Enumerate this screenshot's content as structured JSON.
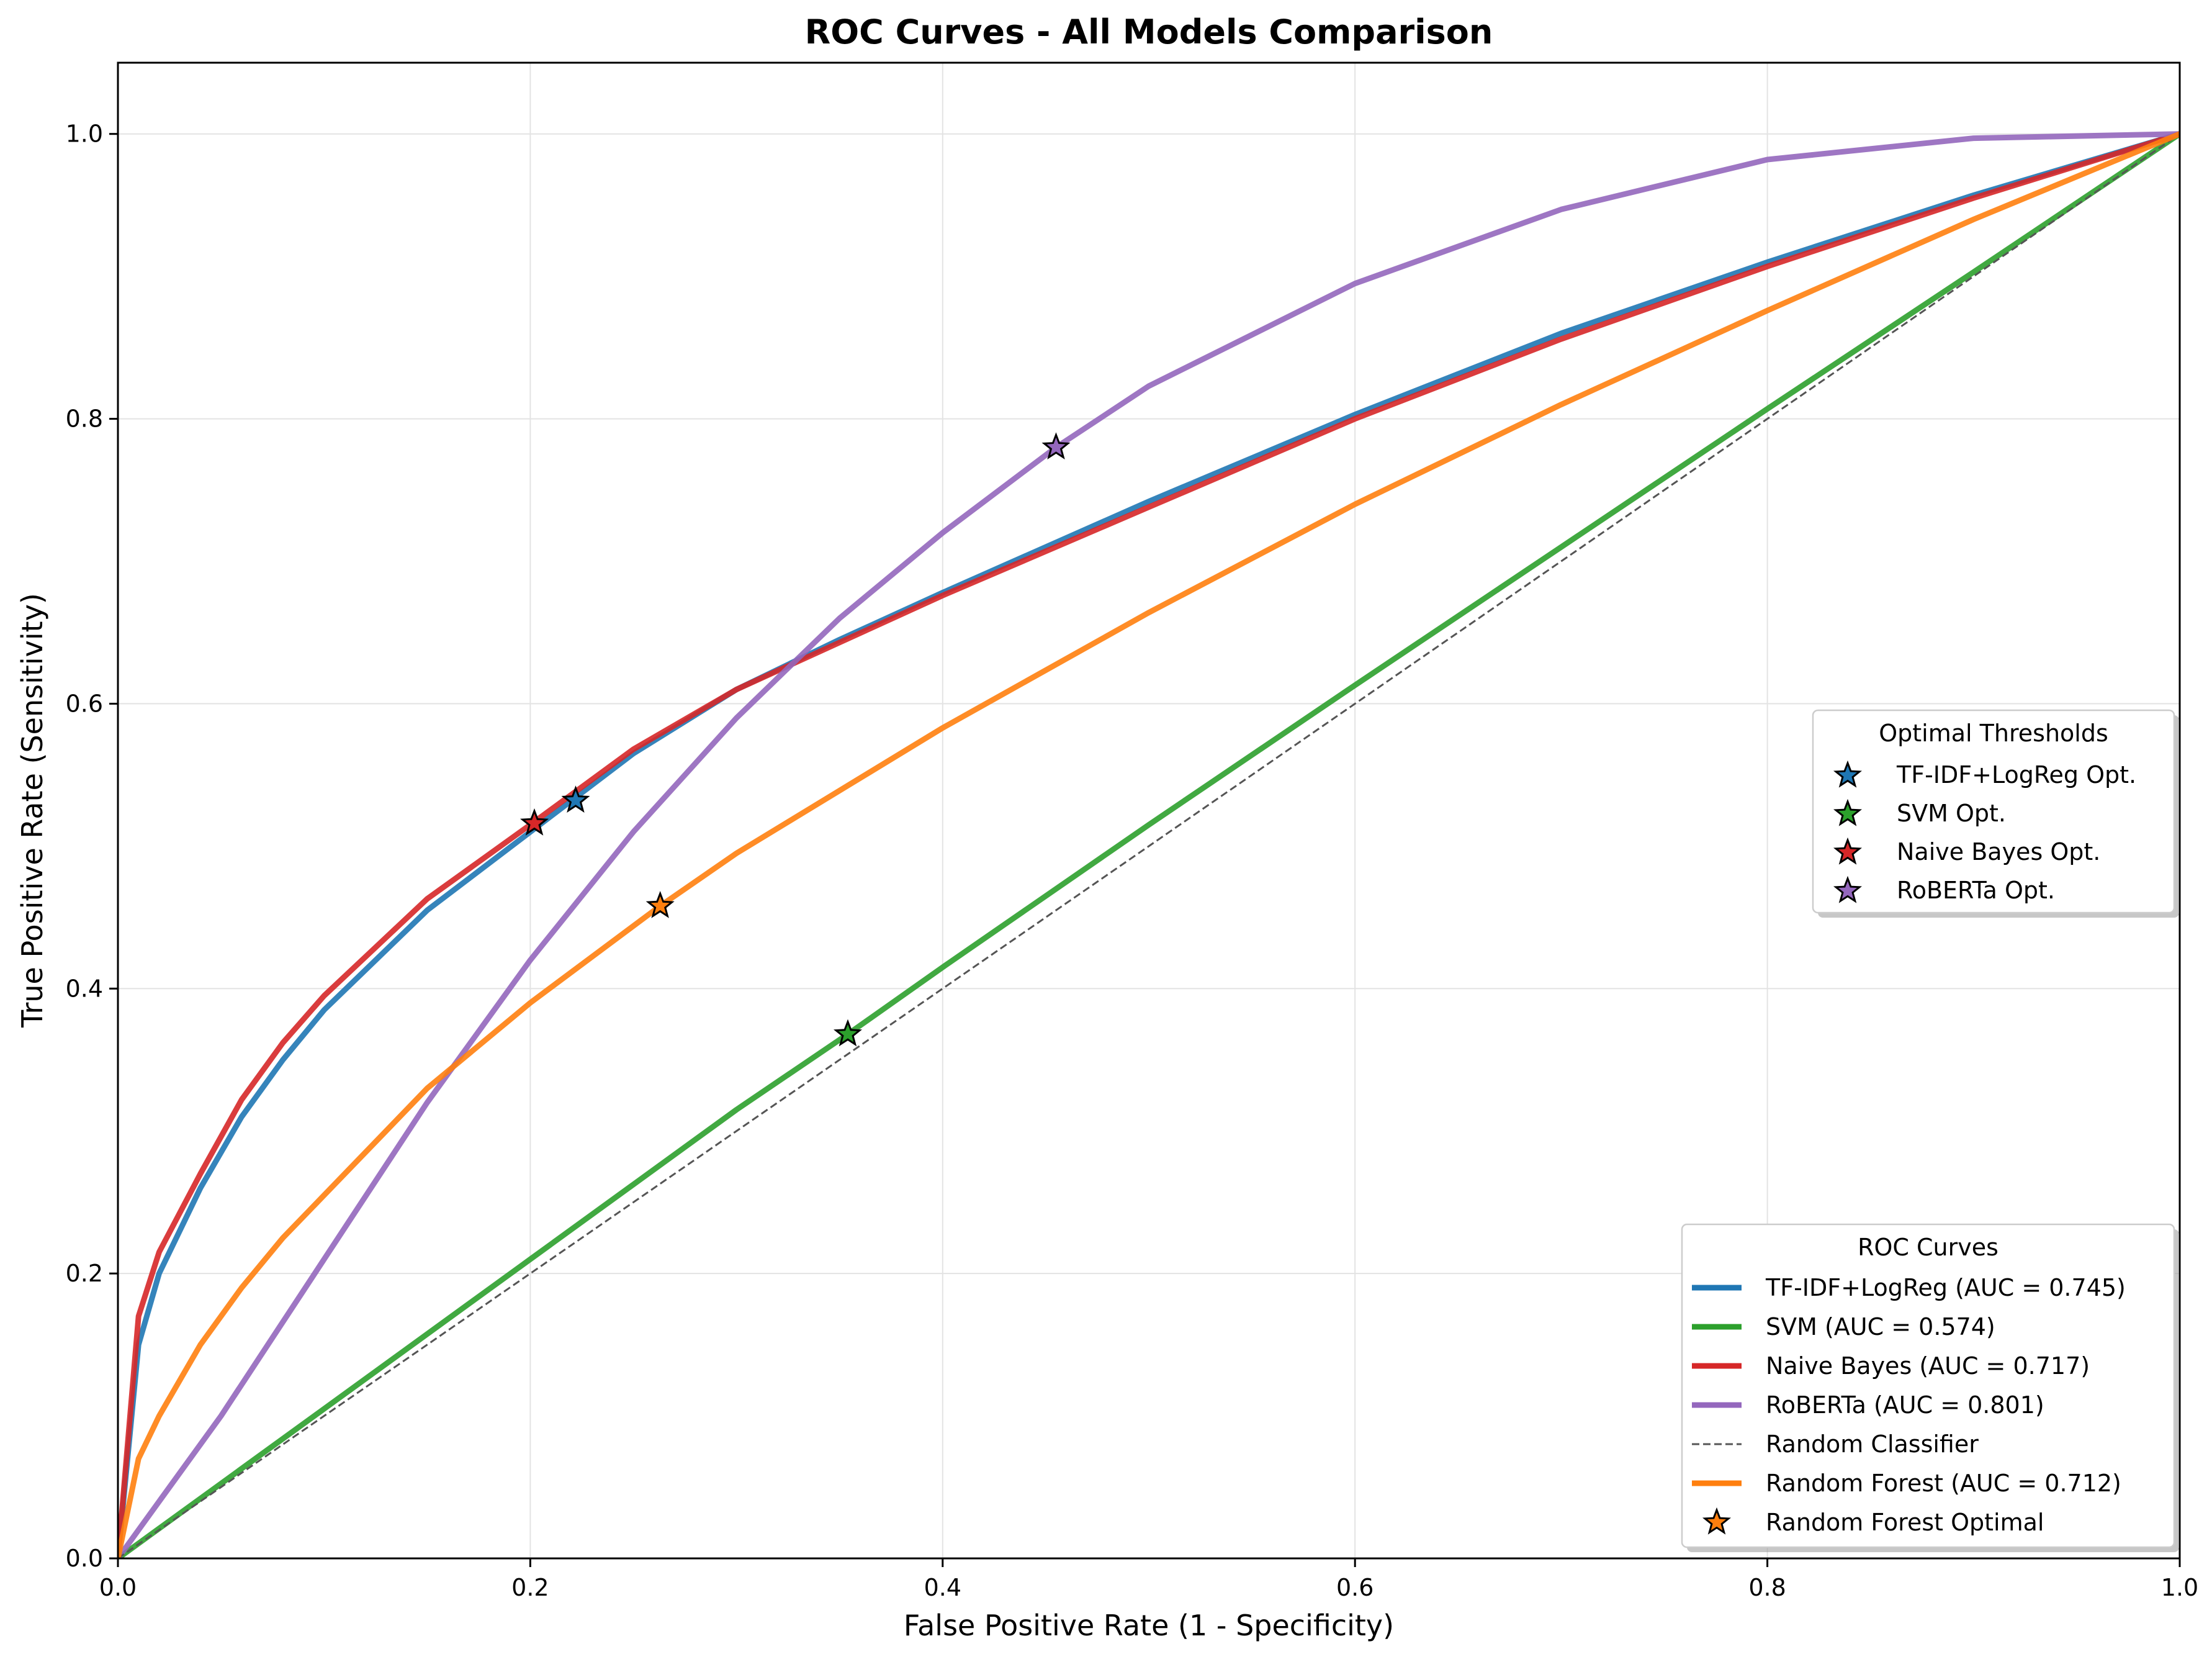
{
  "chart_data": {
    "type": "line",
    "title": "ROC Curves - All Models Comparison",
    "xlabel": "False Positive Rate (1 - Specificity)",
    "ylabel": "True Positive Rate (Sensitivity)",
    "xlim": [
      0,
      1
    ],
    "ylim": [
      0,
      1.05
    ],
    "xticks": [
      0.0,
      0.2,
      0.4,
      0.6,
      0.8,
      1.0
    ],
    "yticks": [
      0.0,
      0.2,
      0.4,
      0.6,
      0.8,
      1.0
    ],
    "xtick_labels": [
      "0.0",
      "0.2",
      "0.4",
      "0.6",
      "0.8",
      "1.0"
    ],
    "ytick_labels": [
      "0.0",
      "0.2",
      "0.4",
      "0.6",
      "0.8",
      "1.0"
    ],
    "grid": true,
    "series": [
      {
        "name": "TF-IDF+LogReg (AUC = 0.745)",
        "color": "#1f77b4",
        "style": "solid",
        "x": [
          0,
          0.01,
          0.02,
          0.04,
          0.06,
          0.08,
          0.1,
          0.15,
          0.2,
          0.25,
          0.3,
          0.35,
          0.4,
          0.5,
          0.6,
          0.7,
          0.8,
          0.9,
          1.0
        ],
        "y": [
          0,
          0.15,
          0.2,
          0.26,
          0.31,
          0.35,
          0.385,
          0.455,
          0.51,
          0.565,
          0.61,
          0.645,
          0.678,
          0.742,
          0.803,
          0.86,
          0.91,
          0.957,
          1.0
        ]
      },
      {
        "name": "SVM (AUC = 0.574)",
        "color": "#2ca02c",
        "style": "solid",
        "x": [
          0,
          0.1,
          0.2,
          0.3,
          0.354,
          0.4,
          0.5,
          0.6,
          0.7,
          0.8,
          0.9,
          1.0
        ],
        "y": [
          0,
          0.105,
          0.21,
          0.315,
          0.368,
          0.415,
          0.515,
          0.613,
          0.71,
          0.807,
          0.903,
          1.0
        ]
      },
      {
        "name": "Naive Bayes (AUC = 0.717)",
        "color": "#d62728",
        "style": "solid",
        "x": [
          0,
          0.01,
          0.02,
          0.04,
          0.06,
          0.08,
          0.1,
          0.15,
          0.2,
          0.25,
          0.3,
          0.35,
          0.4,
          0.5,
          0.6,
          0.7,
          0.8,
          0.9,
          1.0
        ],
        "y": [
          0,
          0.17,
          0.215,
          0.27,
          0.322,
          0.362,
          0.395,
          0.463,
          0.515,
          0.568,
          0.61,
          0.643,
          0.676,
          0.738,
          0.8,
          0.856,
          0.907,
          0.955,
          1.0
        ]
      },
      {
        "name": "RoBERTa (AUC = 0.801)",
        "color": "#9467bd",
        "style": "solid",
        "x": [
          0,
          0.05,
          0.1,
          0.15,
          0.2,
          0.25,
          0.3,
          0.35,
          0.4,
          0.455,
          0.5,
          0.6,
          0.7,
          0.8,
          0.9,
          1.0
        ],
        "y": [
          0,
          0.1,
          0.21,
          0.32,
          0.42,
          0.51,
          0.59,
          0.66,
          0.72,
          0.78,
          0.823,
          0.895,
          0.947,
          0.982,
          0.997,
          1.0
        ]
      },
      {
        "name": "Random Classifier",
        "color": "#555555",
        "style": "dashed",
        "x": [
          0,
          1
        ],
        "y": [
          0,
          1
        ]
      },
      {
        "name": "Random Forest (AUC = 0.712)",
        "color": "#ff7f0e",
        "style": "solid",
        "x": [
          0,
          0.01,
          0.02,
          0.04,
          0.06,
          0.08,
          0.1,
          0.15,
          0.2,
          0.263,
          0.3,
          0.4,
          0.5,
          0.6,
          0.7,
          0.8,
          0.9,
          1.0
        ],
        "y": [
          0,
          0.07,
          0.1,
          0.15,
          0.19,
          0.225,
          0.255,
          0.33,
          0.39,
          0.458,
          0.495,
          0.583,
          0.664,
          0.74,
          0.81,
          0.876,
          0.94,
          1.0
        ]
      }
    ],
    "optimal_points": [
      {
        "name": "TF-IDF+LogReg Opt.",
        "color": "#1f77b4",
        "x": 0.222,
        "y": 0.532
      },
      {
        "name": "SVM Opt.",
        "color": "#2ca02c",
        "x": 0.354,
        "y": 0.368
      },
      {
        "name": "Naive Bayes Opt.",
        "color": "#d62728",
        "x": 0.202,
        "y": 0.516
      },
      {
        "name": "RoBERTa Opt.",
        "color": "#9467bd",
        "x": 0.455,
        "y": 0.78
      },
      {
        "name": "Random Forest Optimal",
        "color": "#ff7f0e",
        "x": 0.263,
        "y": 0.458
      }
    ],
    "legend_thresholds": {
      "title": "Optimal Thresholds",
      "placement": "center-right",
      "entries": [
        "TF-IDF+LogReg Opt.",
        "SVM Opt.",
        "Naive Bayes Opt.",
        "RoBERTa Opt."
      ]
    },
    "legend_curves": {
      "title": "ROC Curves",
      "placement": "lower-right",
      "entries": [
        {
          "label": "TF-IDF+LogReg (AUC = 0.745)",
          "kind": "line",
          "color": "#1f77b4"
        },
        {
          "label": "SVM (AUC = 0.574)",
          "kind": "line",
          "color": "#2ca02c"
        },
        {
          "label": "Naive Bayes (AUC = 0.717)",
          "kind": "line",
          "color": "#d62728"
        },
        {
          "label": "RoBERTa (AUC = 0.801)",
          "kind": "line",
          "color": "#9467bd"
        },
        {
          "label": "Random Classifier",
          "kind": "dashed",
          "color": "#555555"
        },
        {
          "label": "Random Forest (AUC = 0.712)",
          "kind": "line",
          "color": "#ff7f0e"
        },
        {
          "label": "Random Forest Optimal",
          "kind": "star",
          "color": "#ff7f0e"
        }
      ]
    }
  }
}
